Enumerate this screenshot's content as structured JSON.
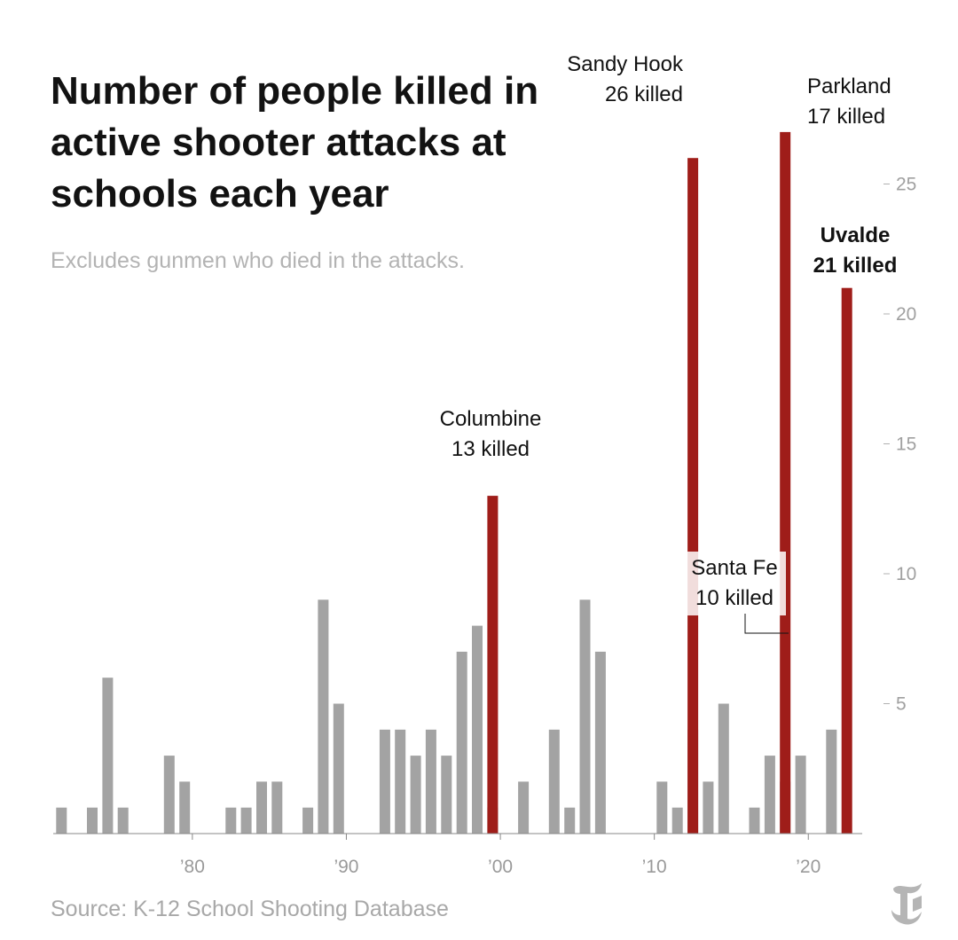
{
  "header": {
    "title": "Number of people killed in active shooter attacks at schools each year",
    "subtitle": "Excludes gunmen who died in the attacks.",
    "source": "Source: K-12 School Shooting Database"
  },
  "colors": {
    "gray_bar": "#a3a3a3",
    "red_bar": "#9f1d19",
    "axis": "#888888",
    "tick_text": "#a0a0a0"
  },
  "logo_icon": "nyt-t-logo-icon",
  "chart_data": {
    "type": "bar",
    "title": "Number of people killed in active shooter attacks at schools each year",
    "subtitle": "Excludes gunmen who died in the attacks.",
    "xlabel": "",
    "ylabel": "",
    "ylim": [
      0,
      30
    ],
    "y_ticks": [
      5,
      10,
      15,
      20,
      25
    ],
    "y_tick_labels": [
      "5",
      "10",
      "15",
      "20",
      "25"
    ],
    "x_ticks": [
      1980,
      1990,
      2000,
      2010,
      2020
    ],
    "x_tick_labels": [
      "’80",
      "’90",
      "’00",
      "’10",
      "’20"
    ],
    "grid": false,
    "legend": "none",
    "years": [
      1971,
      1972,
      1973,
      1974,
      1975,
      1976,
      1977,
      1978,
      1979,
      1980,
      1981,
      1982,
      1983,
      1984,
      1985,
      1986,
      1987,
      1988,
      1989,
      1990,
      1991,
      1992,
      1993,
      1994,
      1995,
      1996,
      1997,
      1998,
      1999,
      2000,
      2001,
      2002,
      2003,
      2004,
      2005,
      2006,
      2007,
      2008,
      2009,
      2010,
      2011,
      2012,
      2013,
      2014,
      2015,
      2016,
      2017,
      2018,
      2019,
      2020,
      2021,
      2022
    ],
    "series": [
      {
        "name": "",
        "color": "#a3a3a3",
        "values": [
          1,
          0,
          1,
          6,
          1,
          0,
          0,
          3,
          2,
          0,
          0,
          1,
          1,
          2,
          2,
          0,
          1,
          9,
          5,
          0,
          0,
          4,
          4,
          3,
          4,
          3,
          7,
          8,
          1,
          0,
          2,
          0,
          4,
          1,
          9,
          7,
          0,
          0,
          0,
          2,
          1,
          4,
          2,
          5,
          0,
          1,
          3,
          2,
          3,
          0,
          4,
          0
        ]
      },
      {
        "name": "",
        "color": "#9f1d19",
        "values": [
          0,
          0,
          0,
          0,
          0,
          0,
          0,
          0,
          0,
          0,
          0,
          0,
          0,
          0,
          0,
          0,
          0,
          0,
          0,
          0,
          0,
          0,
          0,
          0,
          0,
          0,
          0,
          0,
          13,
          0,
          0,
          0,
          0,
          0,
          0,
          0,
          0,
          0,
          0,
          0,
          0,
          26,
          0,
          0,
          0,
          0,
          0,
          27,
          0,
          0,
          0,
          21
        ]
      }
    ],
    "annotations": [
      {
        "year": 1999,
        "lines": [
          "Columbine",
          "13 killed"
        ],
        "bold": false
      },
      {
        "year": 2012,
        "lines": [
          "Sandy Hook",
          "26 killed"
        ],
        "bold": false
      },
      {
        "year": 2018,
        "lines": [
          "Parkland",
          "17 killed"
        ],
        "bold": false
      },
      {
        "year": 2018,
        "lines": [
          "Santa Fe",
          "10 killed"
        ],
        "bold": false
      },
      {
        "year": 2022,
        "lines": [
          "Uvalde",
          "21 killed"
        ],
        "bold": true
      }
    ]
  }
}
